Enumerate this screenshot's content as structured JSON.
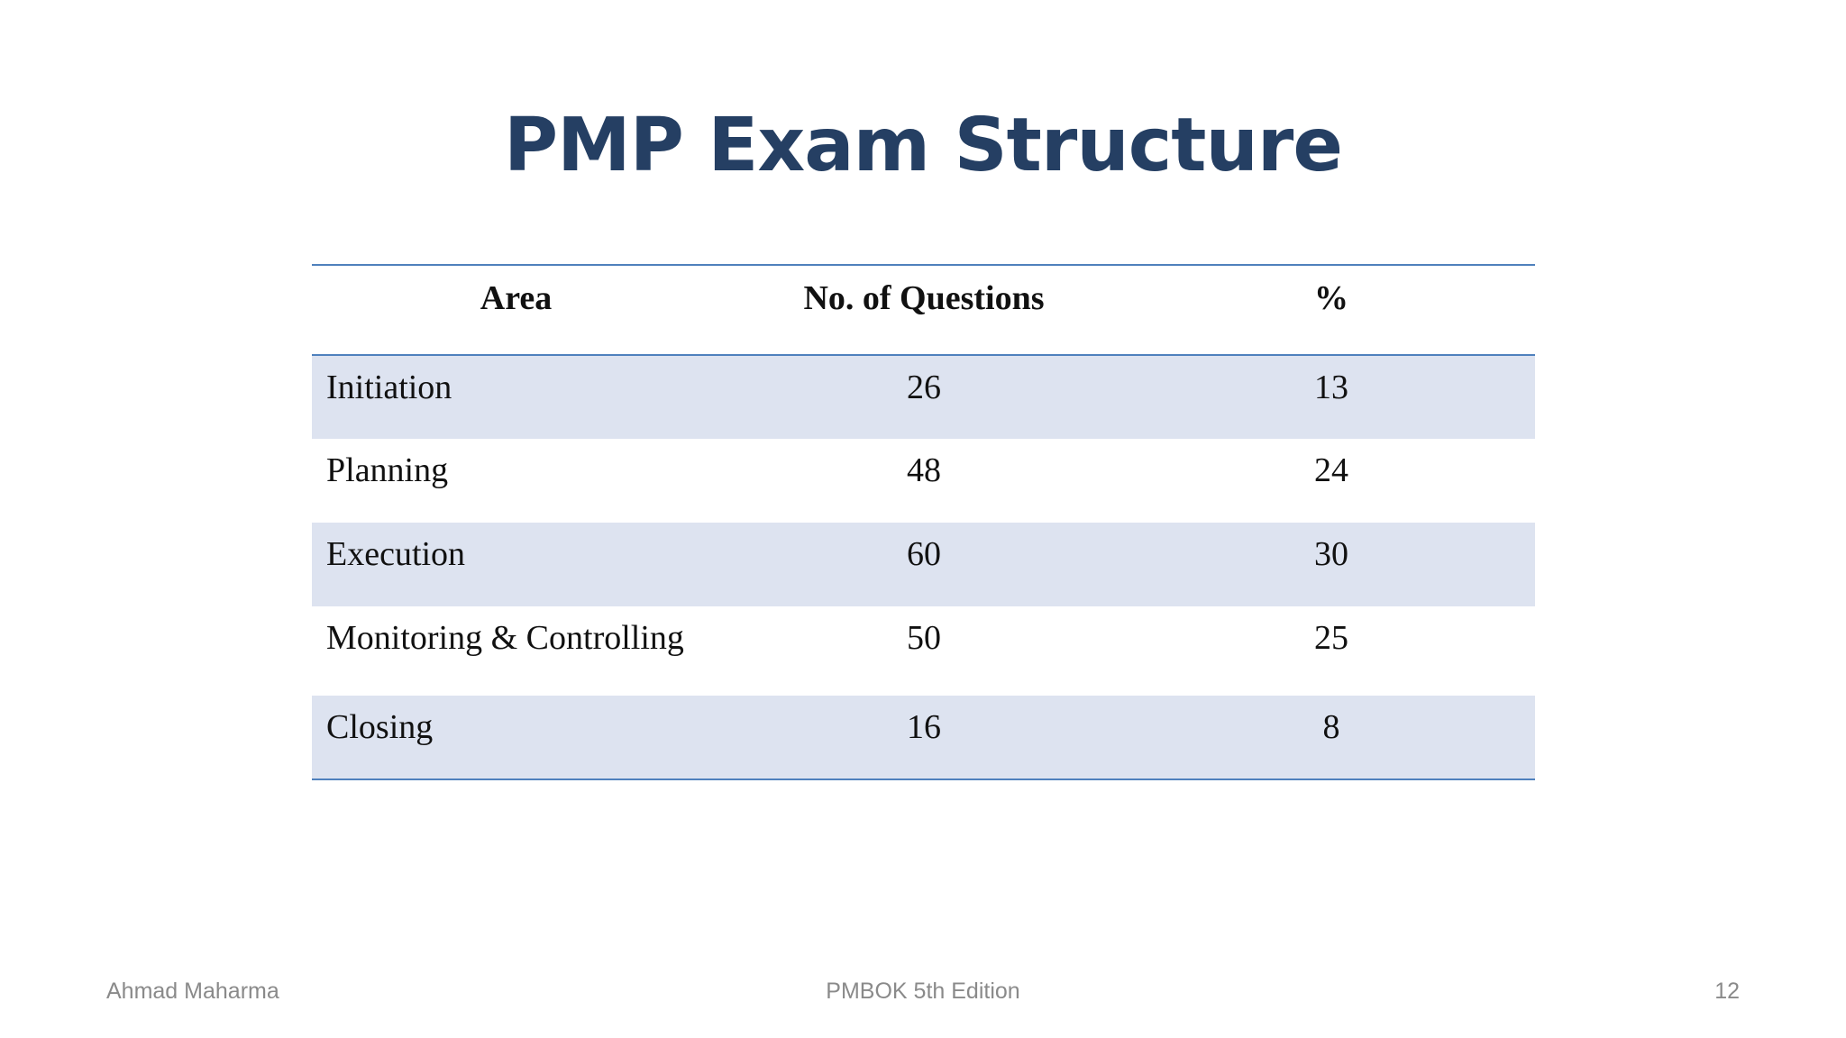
{
  "slide": {
    "title": "PMP Exam Structure"
  },
  "table": {
    "headers": {
      "area": "Area",
      "questions": "No. of Questions",
      "percent": "%"
    },
    "rows": [
      {
        "area": "Initiation",
        "questions": "26",
        "percent": "13"
      },
      {
        "area": "Planning",
        "questions": "48",
        "percent": "24"
      },
      {
        "area": "Execution",
        "questions": "60",
        "percent": "30"
      },
      {
        "area": "Monitoring & Controlling",
        "questions": "50",
        "percent": "25"
      },
      {
        "area": "Closing",
        "questions": "16",
        "percent": "8"
      }
    ]
  },
  "footer": {
    "author": "Ahmad Maharma",
    "subject": "PMBOK 5th Edition",
    "page_number": "12"
  },
  "colors": {
    "title": "#253f63",
    "band": "#dde3f0",
    "rule": "#4f81bd"
  }
}
